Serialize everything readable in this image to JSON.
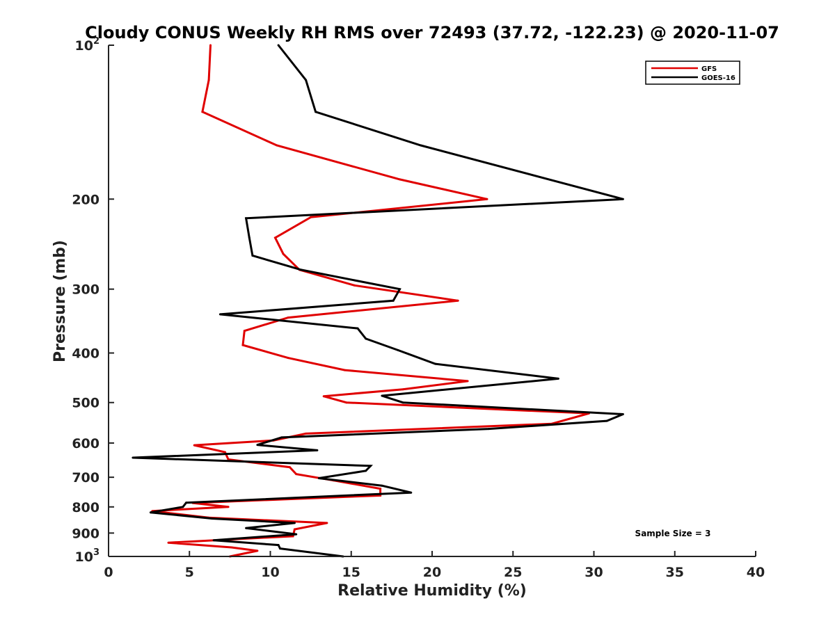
{
  "chart_data": {
    "type": "line",
    "title": "Cloudy CONUS Weekly RH RMS over 72493 (37.72, -122.23) @ 2020-11-07",
    "xlabel": "Relative Humidity (%)",
    "ylabel": "Pressure (mb)",
    "xlim": [
      0,
      40
    ],
    "ylim": [
      100,
      1000
    ],
    "yscale": "log",
    "y_reversed": true,
    "grid": false,
    "x_ticks": [
      0,
      5,
      10,
      15,
      20,
      25,
      30,
      35,
      40
    ],
    "x_tick_labels": [
      "0",
      "5",
      "10",
      "15",
      "20",
      "25",
      "30",
      "35",
      "40"
    ],
    "y_ticks": [
      100,
      200,
      300,
      400,
      500,
      600,
      700,
      800,
      900,
      1000
    ],
    "y_tick_labels": [
      {
        "base": "10",
        "exp": "2"
      },
      {
        "base": "200",
        "exp": ""
      },
      {
        "base": "300",
        "exp": ""
      },
      {
        "base": "400",
        "exp": ""
      },
      {
        "base": "500",
        "exp": ""
      },
      {
        "base": "600",
        "exp": ""
      },
      {
        "base": "700",
        "exp": ""
      },
      {
        "base": "800",
        "exp": ""
      },
      {
        "base": "900",
        "exp": ""
      },
      {
        "base": "10",
        "exp": "3"
      }
    ],
    "legend_position": "top-right",
    "annotation": "Sample Size = 3",
    "series": [
      {
        "name": "GFS",
        "color": "#e00000",
        "points": [
          [
            6.3,
            100
          ],
          [
            6.2,
            117
          ],
          [
            5.8,
            135
          ],
          [
            10.4,
            157
          ],
          [
            18.0,
            183
          ],
          [
            23.4,
            200
          ],
          [
            12.5,
            217
          ],
          [
            10.3,
            238
          ],
          [
            10.8,
            256
          ],
          [
            11.8,
            275
          ],
          [
            15.2,
            295
          ],
          [
            21.6,
            316
          ],
          [
            11.1,
            341
          ],
          [
            8.4,
            362
          ],
          [
            8.3,
            386
          ],
          [
            11.1,
            409
          ],
          [
            14.6,
            432
          ],
          [
            22.2,
            454
          ],
          [
            18.2,
            471
          ],
          [
            13.3,
            486
          ],
          [
            14.7,
            500
          ],
          [
            29.7,
            525
          ],
          [
            27.4,
            550
          ],
          [
            12.2,
            575
          ],
          [
            10.2,
            593
          ],
          [
            5.3,
            606
          ],
          [
            7.2,
            625
          ],
          [
            7.4,
            646
          ],
          [
            11.2,
            669
          ],
          [
            11.6,
            690
          ],
          [
            13.9,
            710
          ],
          [
            16.8,
            737
          ],
          [
            16.8,
            760
          ],
          [
            5.2,
            786
          ],
          [
            7.4,
            800
          ],
          [
            2.7,
            815
          ],
          [
            6.2,
            840
          ],
          [
            13.5,
            860
          ],
          [
            11.5,
            885
          ],
          [
            11.4,
            913
          ],
          [
            3.7,
            940
          ],
          [
            7.6,
            960
          ],
          [
            9.2,
            975
          ],
          [
            7.5,
            1000
          ]
        ]
      },
      {
        "name": "GOES-16",
        "color": "#000000",
        "points": [
          [
            10.5,
            100
          ],
          [
            12.2,
            117
          ],
          [
            12.8,
            135
          ],
          [
            19.3,
            157
          ],
          [
            31.8,
            200
          ],
          [
            8.5,
            218
          ],
          [
            8.7,
            238
          ],
          [
            8.9,
            258
          ],
          [
            11.9,
            275
          ],
          [
            18.0,
            300
          ],
          [
            17.6,
            316
          ],
          [
            6.9,
            336
          ],
          [
            15.4,
            358
          ],
          [
            15.9,
            375
          ],
          [
            17.9,
            395
          ],
          [
            20.2,
            420
          ],
          [
            27.8,
            449
          ],
          [
            16.9,
            485
          ],
          [
            18.2,
            500
          ],
          [
            31.8,
            527
          ],
          [
            30.8,
            543
          ],
          [
            23.5,
            563
          ],
          [
            10.7,
            585
          ],
          [
            9.2,
            605
          ],
          [
            12.9,
            620
          ],
          [
            1.5,
            641
          ],
          [
            16.2,
            665
          ],
          [
            15.9,
            680
          ],
          [
            13.0,
            703
          ],
          [
            16.9,
            727
          ],
          [
            18.7,
            750
          ],
          [
            4.8,
            785
          ],
          [
            4.6,
            800
          ],
          [
            2.6,
            820
          ],
          [
            6.4,
            843
          ],
          [
            11.5,
            860
          ],
          [
            8.5,
            880
          ],
          [
            11.6,
            905
          ],
          [
            6.5,
            930
          ],
          [
            10.5,
            950
          ],
          [
            10.6,
            965
          ],
          [
            14.5,
            1000
          ]
        ]
      }
    ]
  }
}
